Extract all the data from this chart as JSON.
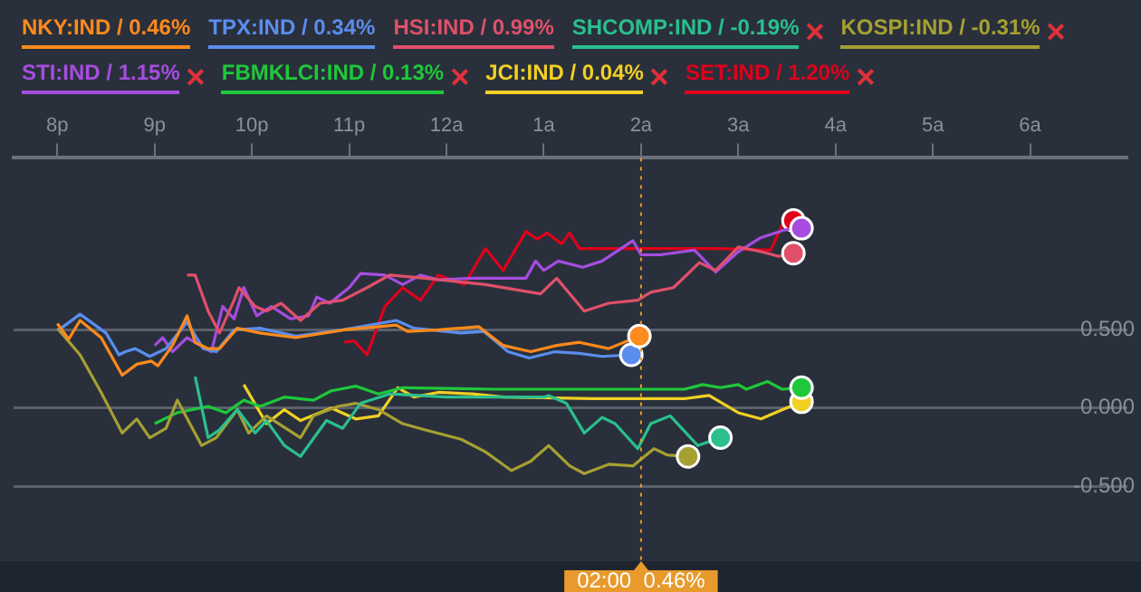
{
  "chart_data": {
    "type": "line",
    "legend": "top",
    "grid": "y",
    "line_style": "solid",
    "xlim": [
      "--01-01T19:33",
      "--01-02T07:00"
    ],
    "ylim": [
      -0.98,
      1.6
    ],
    "xticks": [
      {
        "value": "--01-01T20:00",
        "label": "8p"
      },
      {
        "value": "--01-01T21:00",
        "label": "9p"
      },
      {
        "value": "--01-01T22:00",
        "label": "10p"
      },
      {
        "value": "--01-01T23:00",
        "label": "11p"
      },
      {
        "value": "--01-02T00:00",
        "label": "12a"
      },
      {
        "value": "--01-02T01:00",
        "label": "1a"
      },
      {
        "value": "--01-02T02:00",
        "label": "2a"
      },
      {
        "value": "--01-02T03:00",
        "label": "3a"
      },
      {
        "value": "--01-02T04:00",
        "label": "4a"
      },
      {
        "value": "--01-02T05:00",
        "label": "5a"
      },
      {
        "value": "--01-02T06:00",
        "label": "6a"
      }
    ],
    "yticks": [
      {
        "value": 0.5,
        "label": "0.500"
      },
      {
        "value": 0,
        "label": "0.000"
      },
      {
        "value": -0.5,
        "label": "-0.500"
      }
    ],
    "ref_lines": [
      {
        "axis": "x",
        "value": "--01-02T02:00",
        "label": "02:00  0.46%",
        "color": "#e89a2c",
        "line_style": "dotted"
      }
    ],
    "series": [
      {
        "name": "NKY:IND / 0.46%",
        "color": "#ff8a1c",
        "x": [
          "--01-01T20:00",
          "--01-01T20:07",
          "--01-01T20:14",
          "--01-01T20:27",
          "--01-01T20:40",
          "--01-01T20:49",
          "--01-01T20:58",
          "--01-01T21:02",
          "--01-01T21:11",
          "--01-01T21:20",
          "--01-01T21:25",
          "--01-01T21:33",
          "--01-01T21:40",
          "--01-01T21:51",
          "--01-01T22:05",
          "--01-01T22:27",
          "--01-01T22:57",
          "--01-01T23:29",
          "--01-01T23:36",
          "--01-01T23:55",
          "--01-02T00:20",
          "--01-02T00:35",
          "--01-02T00:52",
          "--01-02T01:08",
          "--01-02T01:22",
          "--01-02T01:40",
          "--01-02T01:59"
        ],
        "values": [
          0.54,
          0.44,
          0.56,
          0.45,
          0.21,
          0.28,
          0.3,
          0.27,
          0.4,
          0.59,
          0.42,
          0.38,
          0.38,
          0.51,
          0.48,
          0.45,
          0.5,
          0.53,
          0.49,
          0.5,
          0.52,
          0.4,
          0.36,
          0.4,
          0.42,
          0.38,
          0.46
        ]
      },
      {
        "name": "TPX:IND / 0.34%",
        "color": "#5b8def",
        "x": [
          "--01-01T20:01",
          "--01-01T20:14",
          "--01-01T20:30",
          "--01-01T20:38",
          "--01-01T20:42",
          "--01-01T20:48",
          "--01-01T20:57",
          "--01-01T21:07",
          "--01-01T21:20",
          "--01-01T21:30",
          "--01-01T21:38",
          "--01-01T21:49",
          "--01-01T22:05",
          "--01-01T22:27",
          "--01-01T22:56",
          "--01-01T23:29",
          "--01-01T23:40",
          "--01-02T00:09",
          "--01-02T00:23",
          "--01-02T00:38",
          "--01-02T00:51",
          "--01-02T01:07",
          "--01-02T01:22",
          "--01-02T01:36",
          "--01-02T01:54"
        ],
        "values": [
          0.5,
          0.6,
          0.48,
          0.34,
          0.36,
          0.38,
          0.33,
          0.38,
          0.55,
          0.38,
          0.36,
          0.5,
          0.51,
          0.46,
          0.5,
          0.56,
          0.51,
          0.48,
          0.49,
          0.36,
          0.32,
          0.36,
          0.35,
          0.33,
          0.34
        ]
      },
      {
        "name": "HSI:IND / 0.99%",
        "color": "#e0506a",
        "x": [
          "--01-01T21:20",
          "--01-01T21:25",
          "--01-01T21:33",
          "--01-01T21:40",
          "--01-01T21:49",
          "--01-01T21:52",
          "--01-01T22:02",
          "--01-01T22:09",
          "--01-01T22:18",
          "--01-01T22:30",
          "--01-01T22:42",
          "--01-01T22:56",
          "--01-01T23:11",
          "--01-01T23:25",
          "--01-01T23:47",
          "--01-02T00:24",
          "--01-02T00:58",
          "--01-02T01:08",
          "--01-02T01:25",
          "--01-02T01:40",
          "--01-02T01:58",
          "--01-02T02:06",
          "--01-02T02:20",
          "--01-02T02:36",
          "--01-02T02:46",
          "--01-02T03:00",
          "--01-02T03:14",
          "--01-02T03:25",
          "--01-02T03:34"
        ],
        "values": [
          0.85,
          0.85,
          0.62,
          0.48,
          0.69,
          0.77,
          0.65,
          0.62,
          0.67,
          0.56,
          0.67,
          0.69,
          0.77,
          0.85,
          0.83,
          0.79,
          0.73,
          0.83,
          0.62,
          0.67,
          0.69,
          0.74,
          0.77,
          0.93,
          0.88,
          1.03,
          1,
          0.97,
          0.99
        ]
      },
      {
        "name": "SHCOMP:IND / -0.19%",
        "color": "#2bbf8e",
        "x": [
          "--01-01T21:25",
          "--01-01T21:33",
          "--01-01T21:40",
          "--01-01T21:51",
          "--01-01T22:02",
          "--01-01T22:09",
          "--01-01T22:20",
          "--01-01T22:30",
          "--01-01T22:46",
          "--01-01T22:56",
          "--01-01T23:07",
          "--01-01T23:25",
          "--01-02T00:00",
          "--01-02T01:00",
          "--01-02T01:03",
          "--01-02T01:14",
          "--01-02T01:25",
          "--01-02T01:36",
          "--01-02T01:44",
          "--01-02T01:58",
          "--01-02T02:06",
          "--01-02T02:18",
          "--01-02T02:35",
          "--01-02T02:49"
        ],
        "values": [
          0.2,
          -0.19,
          -0.14,
          -0.01,
          -0.16,
          -0.08,
          -0.24,
          -0.31,
          -0.08,
          -0.13,
          0.03,
          0.09,
          0.07,
          0.07,
          0.08,
          0.03,
          -0.16,
          -0.06,
          -0.1,
          -0.26,
          -0.1,
          -0.05,
          -0.24,
          -0.19
        ]
      },
      {
        "name": "KOSPI:IND / -0.31%",
        "color": "#a6a032",
        "x": [
          "--01-01T20:00",
          "--01-01T20:14",
          "--01-01T20:27",
          "--01-01T20:40",
          "--01-01T20:49",
          "--01-01T20:57",
          "--01-01T21:07",
          "--01-01T21:14",
          "--01-01T21:29",
          "--01-01T21:38",
          "--01-01T21:51",
          "--01-01T21:58",
          "--01-01T22:09",
          "--01-01T22:30",
          "--01-01T22:38",
          "--01-01T22:53",
          "--01-01T23:04",
          "--01-01T23:18",
          "--01-01T23:33",
          "--01-01T23:47",
          "--01-02T00:09",
          "--01-02T00:24",
          "--01-02T00:40",
          "--01-02T00:52",
          "--01-02T01:03",
          "--01-02T01:16",
          "--01-02T01:25",
          "--01-02T01:40",
          "--01-02T01:55",
          "--01-02T02:08",
          "--01-02T02:16",
          "--01-02T02:29"
        ],
        "values": [
          0.51,
          0.34,
          0.1,
          -0.16,
          -0.07,
          -0.19,
          -0.13,
          0.05,
          -0.24,
          -0.19,
          -0.01,
          -0.16,
          -0.05,
          -0.19,
          -0.05,
          0.01,
          0.03,
          -0.01,
          -0.1,
          -0.14,
          -0.2,
          -0.28,
          -0.4,
          -0.34,
          -0.24,
          -0.37,
          -0.42,
          -0.36,
          -0.37,
          -0.26,
          -0.3,
          -0.31
        ]
      },
      {
        "name": "STI:IND / 1.15%",
        "color": "#a64de0",
        "x": [
          "--01-01T21:00",
          "--01-01T21:05",
          "--01-01T21:11",
          "--01-01T21:20",
          "--01-01T21:35",
          "--01-01T21:42",
          "--01-01T21:49",
          "--01-01T21:55",
          "--01-01T22:03",
          "--01-01T22:12",
          "--01-01T22:24",
          "--01-01T22:35",
          "--01-01T22:40",
          "--01-01T22:48",
          "--01-01T23:00",
          "--01-01T23:07",
          "--01-01T23:22",
          "--01-01T23:33",
          "--01-01T23:44",
          "--01-01T23:55",
          "--01-02T00:16",
          "--01-02T00:49",
          "--01-02T00:55",
          "--01-02T01:00",
          "--01-02T01:09",
          "--01-02T01:24",
          "--01-02T01:36",
          "--01-02T01:55",
          "--01-02T02:00",
          "--01-02T02:12",
          "--01-02T02:33",
          "--01-02T02:46",
          "--01-02T03:00",
          "--01-02T03:14",
          "--01-02T03:29",
          "--01-02T03:39"
        ],
        "values": [
          0.4,
          0.45,
          0.36,
          0.45,
          0.36,
          0.65,
          0.57,
          0.77,
          0.59,
          0.65,
          0.57,
          0.59,
          0.71,
          0.67,
          0.77,
          0.86,
          0.85,
          0.79,
          0.85,
          0.82,
          0.83,
          0.83,
          0.94,
          0.88,
          0.94,
          0.9,
          0.94,
          1.07,
          0.98,
          0.98,
          1.01,
          0.87,
          1,
          1.09,
          1.14,
          1.15
        ]
      },
      {
        "name": "FBMKLCI:IND / 0.13%",
        "color": "#1ec83a",
        "x": [
          "--01-01T21:00",
          "--01-01T21:14",
          "--01-01T21:33",
          "--01-01T21:44",
          "--01-01T21:55",
          "--01-01T22:05",
          "--01-01T22:20",
          "--01-01T22:38",
          "--01-01T22:49",
          "--01-01T23:04",
          "--01-01T23:18",
          "--01-01T23:33",
          "--01-02T00:30",
          "--01-02T01:30",
          "--01-02T02:27",
          "--01-02T02:38",
          "--01-02T02:49",
          "--01-02T03:00",
          "--01-02T03:05",
          "--01-02T03:18",
          "--01-02T03:27",
          "--01-02T03:39"
        ],
        "values": [
          -0.1,
          -0.03,
          0.01,
          -0.03,
          0.05,
          0.01,
          0.07,
          0.05,
          0.11,
          0.14,
          0.09,
          0.13,
          0.12,
          0.12,
          0.12,
          0.15,
          0.13,
          0.15,
          0.12,
          0.17,
          0.12,
          0.13
        ]
      },
      {
        "name": "JCI:IND / 0.04%",
        "color": "#f2d024",
        "x": [
          "--01-01T21:55",
          "--01-01T22:09",
          "--01-01T22:20",
          "--01-01T22:30",
          "--01-01T22:49",
          "--01-01T23:04",
          "--01-01T23:18",
          "--01-01T23:30",
          "--01-01T23:40",
          "--01-01T23:55",
          "--01-02T00:16",
          "--01-02T00:35",
          "--01-02T01:30",
          "--01-02T02:27",
          "--01-02T02:42",
          "--01-02T03:00",
          "--01-02T03:14",
          "--01-02T03:25",
          "--01-02T03:39"
        ],
        "values": [
          0.15,
          -0.1,
          -0.01,
          -0.08,
          0,
          -0.07,
          -0.05,
          0.13,
          0.07,
          0.1,
          0.09,
          0.07,
          0.06,
          0.06,
          0.08,
          -0.03,
          -0.07,
          -0.02,
          0.04
        ]
      },
      {
        "name": "SET:IND / 1.20%",
        "color": "#e0001b",
        "x": [
          "--01-01T22:57",
          "--01-01T23:03",
          "--01-01T23:11",
          "--01-01T23:22",
          "--01-01T23:33",
          "--01-01T23:44",
          "--01-01T23:55",
          "--01-02T00:11",
          "--01-02T00:24",
          "--01-02T00:35",
          "--01-02T00:49",
          "--01-02T00:56",
          "--01-02T01:02",
          "--01-02T01:11",
          "--01-02T01:16",
          "--01-02T01:22",
          "--01-02T02:00",
          "--01-02T02:48",
          "--01-02T03:20",
          "--01-02T03:27",
          "--01-02T03:34"
        ],
        "values": [
          0.42,
          0.43,
          0.34,
          0.65,
          0.77,
          0.69,
          0.85,
          0.79,
          1.02,
          0.88,
          1.13,
          1.08,
          1.12,
          1.05,
          1.12,
          1.02,
          1.02,
          1.02,
          1.01,
          1.17,
          1.2
        ]
      }
    ]
  }
}
